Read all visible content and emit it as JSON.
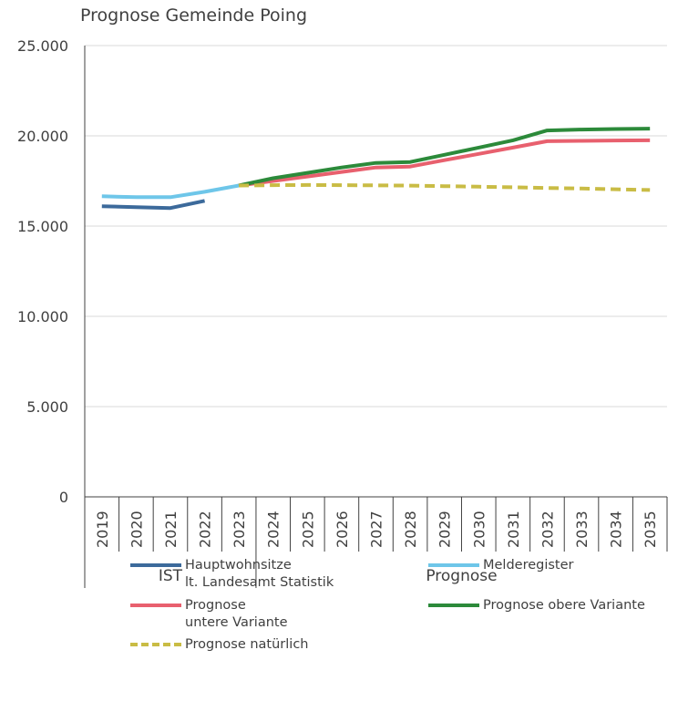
{
  "chart_data": {
    "type": "line",
    "title": "Prognose Gemeinde Poing",
    "categories": [
      "2019",
      "2020",
      "2021",
      "2022",
      "2023",
      "2024",
      "2025",
      "2026",
      "2027",
      "2028",
      "2029",
      "2030",
      "2031",
      "2032",
      "2033",
      "2034",
      "2035"
    ],
    "ylim": [
      0,
      25000
    ],
    "y_ticks": [
      0,
      5000,
      10000,
      15000,
      20000,
      25000
    ],
    "y_tick_labels": [
      "0",
      "5.000",
      "10.000",
      "15.000",
      "20.000",
      "25.000"
    ],
    "grid": true,
    "legend_position": "bottom",
    "x_groups": [
      {
        "label": "IST",
        "categories": [
          "2019",
          "2020",
          "2021",
          "2022",
          "2023"
        ]
      },
      {
        "label": "Prognose",
        "categories": [
          "2024",
          "2025",
          "2026",
          "2027",
          "2028",
          "2029",
          "2030",
          "2031",
          "2032",
          "2033",
          "2034",
          "2035"
        ]
      }
    ],
    "series": [
      {
        "name": "Hauptwohnsitze\nlt. Landesamt Statistik",
        "color": "#3c6a9b",
        "dash": false,
        "values": [
          16100,
          16050,
          16000,
          16400,
          null,
          null,
          null,
          null,
          null,
          null,
          null,
          null,
          null,
          null,
          null,
          null,
          null
        ]
      },
      {
        "name": "Melderegister",
        "color": "#6ec6e9",
        "dash": false,
        "values": [
          16650,
          16600,
          16600,
          16900,
          17250,
          null,
          null,
          null,
          null,
          null,
          null,
          null,
          null,
          null,
          null,
          null,
          null
        ]
      },
      {
        "name": " Prognose\nuntere Variante",
        "color": "#e8606e",
        "dash": false,
        "values": [
          null,
          null,
          null,
          null,
          17250,
          17500,
          17750,
          18000,
          18250,
          18300,
          18650,
          19000,
          19350,
          19700,
          19720,
          19740,
          19750
        ]
      },
      {
        "name": "Prognose obere Variante",
        "color": "#2c8a3a",
        "dash": false,
        "values": [
          null,
          null,
          null,
          null,
          17250,
          17650,
          17950,
          18250,
          18500,
          18550,
          18950,
          19350,
          19750,
          20300,
          20350,
          20380,
          20400
        ]
      },
      {
        "name": "Prognose natürlich",
        "color": "#c9bc45",
        "dash": true,
        "values": [
          null,
          null,
          null,
          null,
          17250,
          17270,
          17280,
          17270,
          17260,
          17240,
          17210,
          17180,
          17150,
          17110,
          17080,
          17040,
          17000
        ]
      }
    ]
  }
}
